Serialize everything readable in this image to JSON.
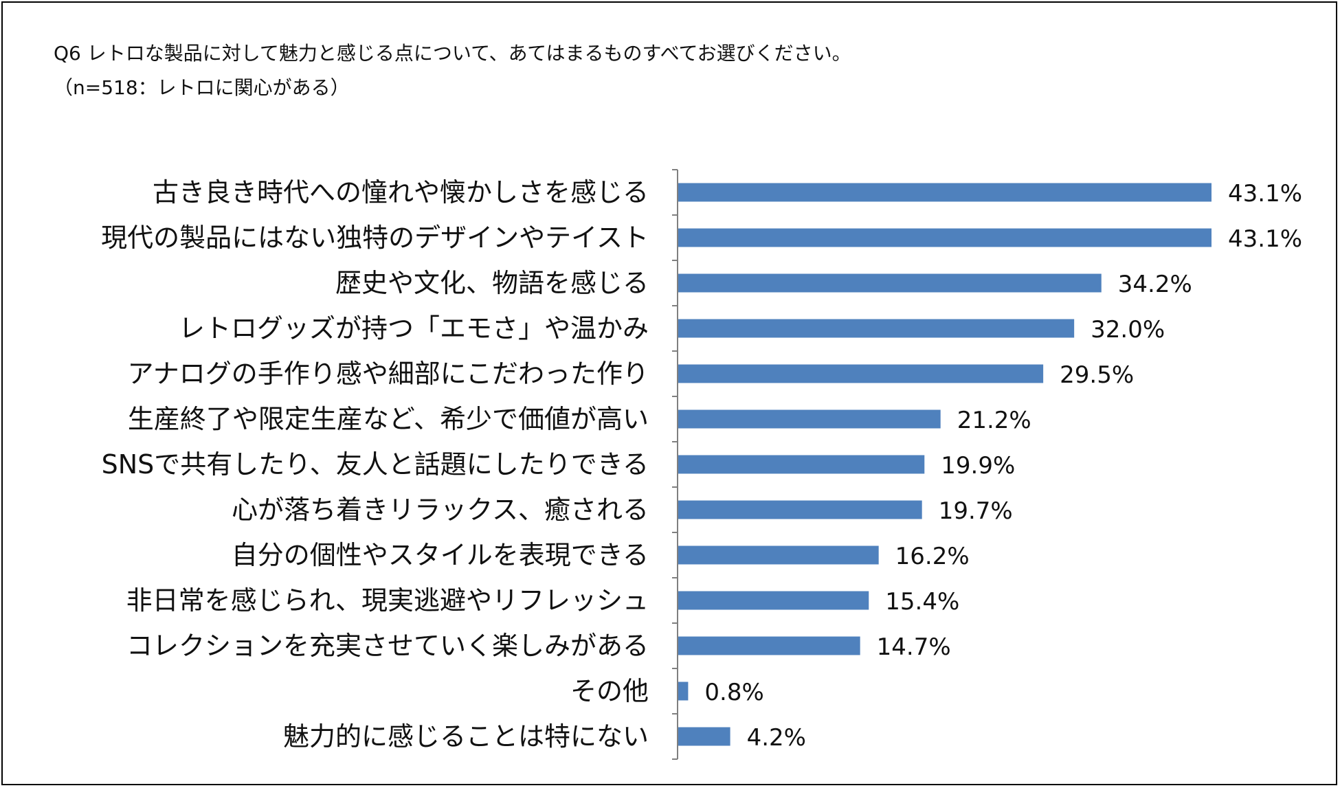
{
  "chart_data": {
    "type": "bar",
    "orientation": "horizontal",
    "title": "Q6 レトロな製品に対して魅力と感じる点について、あてはまるものすべてお選びください。",
    "subtitle": "（n=518：レトロに関心がある）",
    "categories": [
      "古き良き時代への憧れや懐かしさを感じる",
      "現代の製品にはない独特のデザインやテイスト",
      "歴史や文化、物語を感じる",
      "レトログッズが持つ「エモさ」や温かみ",
      "アナログの手作り感や細部にこだわった作り",
      "生産終了や限定生産など、希少で価値が高い",
      "SNSで共有したり、友人と話題にしたりできる",
      "心が落ち着きリラックス、癒される",
      "自分の個性やスタイルを表現できる",
      "非日常を感じられ、現実逃避やリフレッシュ",
      "コレクションを充実させていく楽しみがある",
      "その他",
      "魅力的に感じることは特にない"
    ],
    "values": [
      43.1,
      43.1,
      34.2,
      32.0,
      29.5,
      21.2,
      19.9,
      19.7,
      16.2,
      15.4,
      14.7,
      0.8,
      4.2
    ],
    "value_labels": [
      "43.1%",
      "43.1%",
      "34.2%",
      "32.0%",
      "29.5%",
      "21.2%",
      "19.9%",
      "19.7%",
      "16.2%",
      "15.4%",
      "14.7%",
      "0.8%",
      "4.2%"
    ],
    "xlim": [
      0,
      43.1
    ],
    "xlabel": "",
    "ylabel": "",
    "grid": false,
    "legend": "none",
    "bar_color": "#4f81bd",
    "axis_color": "#7f7f7f"
  }
}
